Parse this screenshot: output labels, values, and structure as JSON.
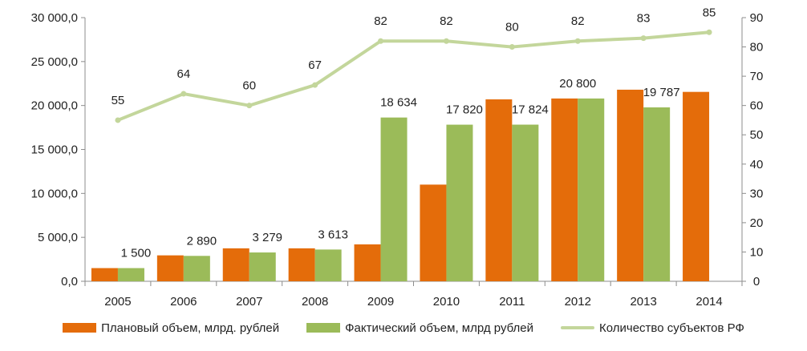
{
  "chart_data": {
    "type": "bar",
    "categories": [
      "2005",
      "2006",
      "2007",
      "2008",
      "2009",
      "2010",
      "2011",
      "2012",
      "2013",
      "2014"
    ],
    "series": [
      {
        "name": "Плановый объем, млрд. рублей",
        "type": "bar",
        "axis": "left",
        "color": "#E46C0A",
        "values": [
          1500,
          2950,
          3750,
          3750,
          4200,
          11000,
          20700,
          20800,
          21800,
          21550
        ],
        "labels": [
          "",
          "",
          "",
          "",
          "",
          "",
          "",
          "",
          "",
          ""
        ]
      },
      {
        "name": "Фактический объем, млрд рублей",
        "type": "bar",
        "axis": "left",
        "color": "#9BBB59",
        "values": [
          1500,
          2890,
          3279,
          3613,
          18634,
          17820,
          17824,
          20800,
          19787,
          null
        ],
        "labels": [
          "1 500",
          "2 890",
          "3 279",
          "3 613",
          "18 634",
          "17 820",
          "17 824",
          "20 800",
          "19 787",
          ""
        ]
      },
      {
        "name": "Количество субъектов РФ",
        "type": "line",
        "axis": "right",
        "color": "#C3D69B",
        "values": [
          55,
          64,
          60,
          67,
          82,
          82,
          80,
          82,
          83,
          85
        ],
        "labels": [
          "55",
          "64",
          "60",
          "67",
          "82",
          "82",
          "80",
          "82",
          "83",
          "85"
        ]
      }
    ],
    "y_left": {
      "ylim": [
        0,
        30000
      ],
      "ticks": [
        0,
        5000,
        10000,
        15000,
        20000,
        25000,
        30000
      ],
      "tick_labels": [
        "0,0",
        "5 000,0",
        "10 000,0",
        "15 000,0",
        "20 000,0",
        "25 000,0",
        "30 000,0"
      ]
    },
    "y_right": {
      "ylim": [
        0,
        90
      ],
      "ticks": [
        0,
        10,
        20,
        30,
        40,
        50,
        60,
        70,
        80,
        90
      ],
      "tick_labels": [
        "0",
        "10",
        "20",
        "30",
        "40",
        "50",
        "60",
        "70",
        "80",
        "90"
      ]
    },
    "title": "",
    "xlabel": "",
    "ylabel": "",
    "grid": false,
    "legend_position": "bottom"
  }
}
